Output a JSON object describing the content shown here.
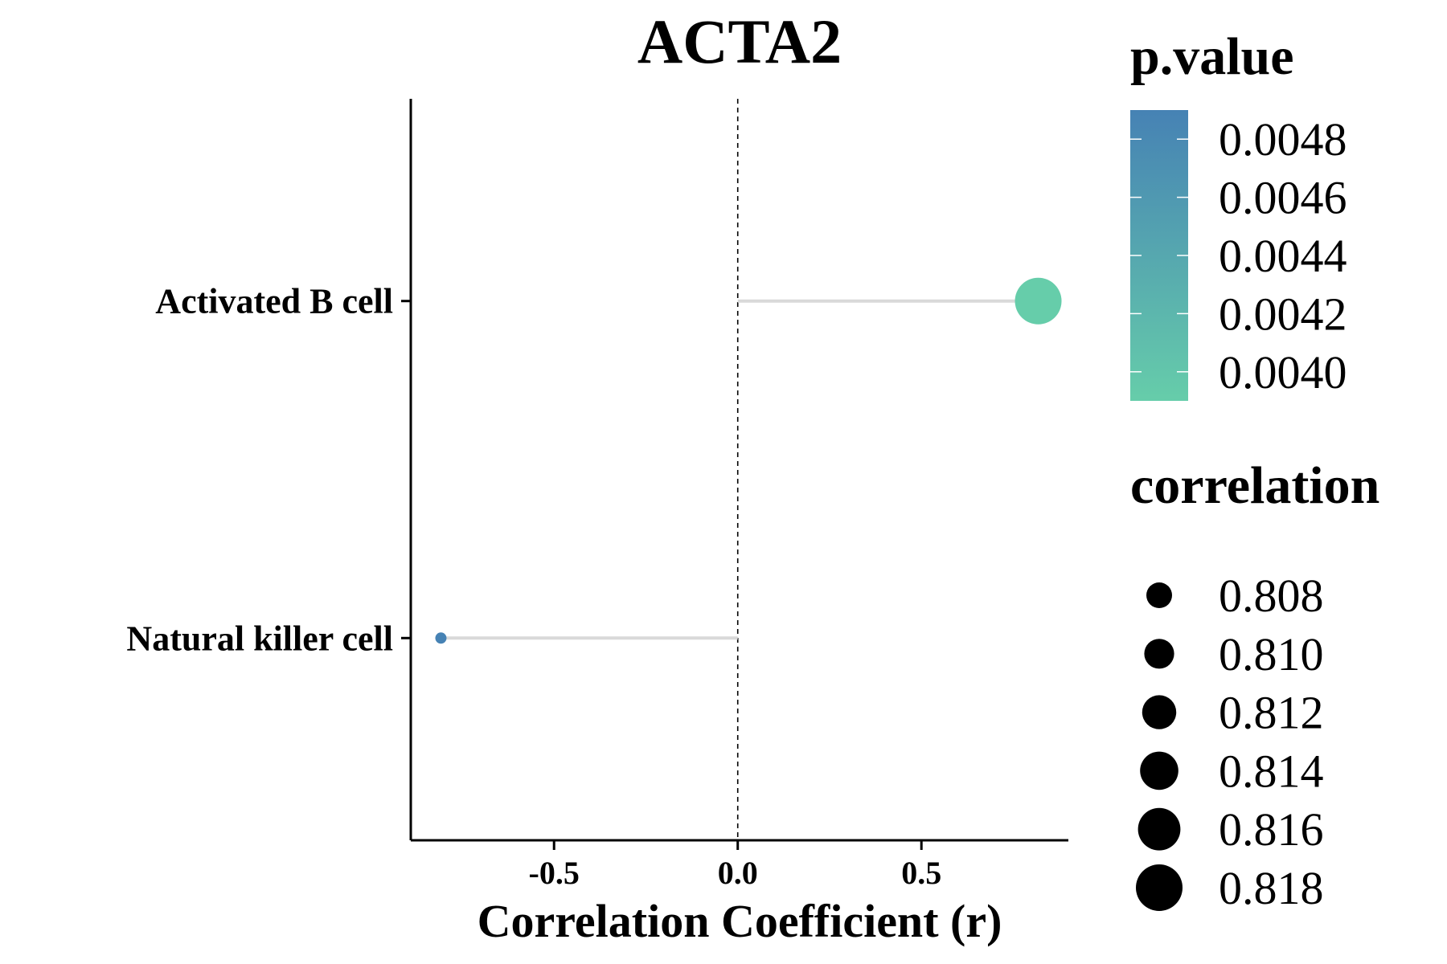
{
  "chart_data": {
    "type": "lollipop",
    "title": "ACTA2",
    "xlabel": "Correlation Coefficient (r)",
    "ylabel": "",
    "xlim": [
      -0.89,
      0.9
    ],
    "xticks": [
      -0.5,
      0.0,
      0.5
    ],
    "xtick_labels": [
      "-0.5",
      "0.0",
      "0.5"
    ],
    "reference_line": 0.0,
    "grid": false,
    "categories": [
      "Activated B cell",
      "Natural killer cell"
    ],
    "points": [
      {
        "category": "Activated B cell",
        "x": 0.818,
        "correlation": 0.818,
        "p_value": 0.0039
      },
      {
        "category": "Natural killer cell",
        "x": -0.808,
        "correlation": 0.808,
        "p_value": 0.0049
      }
    ],
    "color_legend": {
      "title": "p.value",
      "labels": [
        "0.0048",
        "0.0046",
        "0.0044",
        "0.0042",
        "0.0040"
      ],
      "values": [
        0.0048,
        0.0046,
        0.0044,
        0.0042,
        0.004
      ],
      "range": [
        0.0039,
        0.0049
      ],
      "low_color": "#66CDAA",
      "high_color": "#4682B4"
    },
    "size_legend": {
      "title": "correlation",
      "labels": [
        "0.808",
        "0.810",
        "0.812",
        "0.814",
        "0.816",
        "0.818"
      ],
      "values": [
        0.808,
        0.81,
        0.812,
        0.814,
        0.816,
        0.818
      ]
    },
    "segment_color": "#d9d9d9",
    "legend_position": "right"
  }
}
